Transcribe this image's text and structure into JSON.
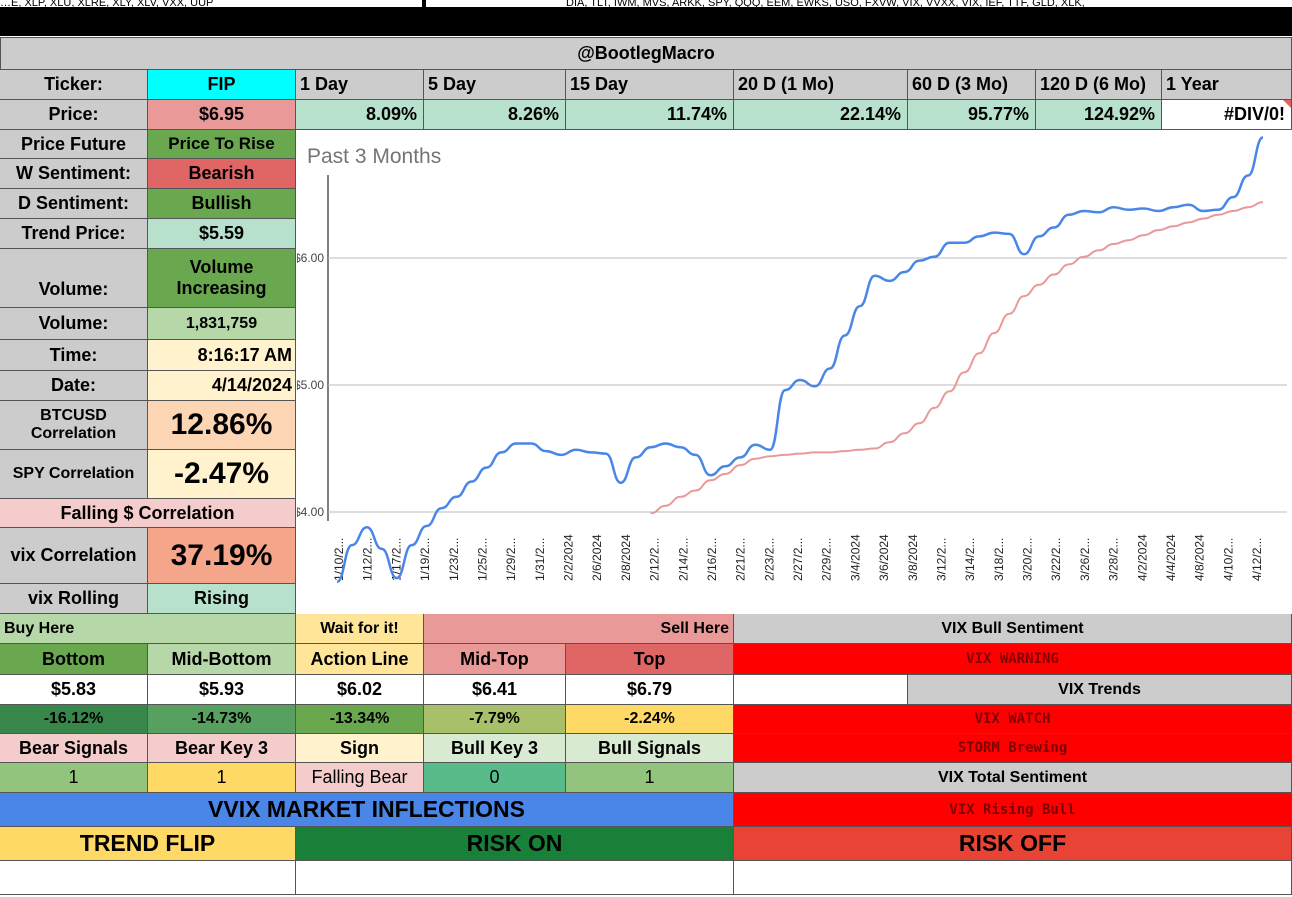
{
  "top_strip": {
    "left_text": "…E, XLP, XLU, XLRE, XLY, XLV, VXX, UUP",
    "right_text": "DIA, TLT, IWM, MVS, ARKK, SPY, QQQ, EEM, EWKS, USO, FXVW, VIX, VVXX, VIX, IEF, TTF, GLD, XLK,"
  },
  "header": {
    "title": "@BootlegMacro"
  },
  "ticker": {
    "label": "Ticker:",
    "value": "FIP"
  },
  "periods": {
    "labels": [
      "1 Day",
      "5 Day",
      "15 Day",
      "20 D (1 Mo)",
      "60 D (3 Mo)",
      "120 D (6 Mo)",
      "1 Year"
    ],
    "values": [
      "8.09%",
      "8.26%",
      "11.74%",
      "22.14%",
      "95.77%",
      "124.92%",
      "#DIV/0!"
    ]
  },
  "price": {
    "label": "Price:",
    "value": "$6.95"
  },
  "stats": {
    "price_future": {
      "label": "Price Future",
      "value": "Price To Rise"
    },
    "w_sentiment": {
      "label": "W Sentiment:",
      "value": "Bearish"
    },
    "d_sentiment": {
      "label": "D Sentiment:",
      "value": "Bullish"
    },
    "trend_price": {
      "label": "Trend Price:",
      "value": "$5.59"
    },
    "volume_trend": {
      "label": "Volume:",
      "value": "Volume Increasing"
    },
    "volume": {
      "label": "Volume:",
      "value": "1,831,759"
    },
    "time": {
      "label": "Time:",
      "value": "8:16:17 AM"
    },
    "date": {
      "label": "Date:",
      "value": "4/14/2024"
    },
    "btc_corr": {
      "label": "BTCUSD Correlation",
      "value": "12.86%"
    },
    "spy_corr": {
      "label": "SPY Correlation",
      "value": "-2.47%"
    },
    "falling_corr": {
      "label": "Falling $ Correlation"
    },
    "vix_corr": {
      "label": "vix Correlation",
      "value": "37.19%"
    },
    "vix_rolling": {
      "label": "vix Rolling",
      "value": "Rising"
    }
  },
  "chart_data": {
    "type": "line",
    "title": "Past 3 Months",
    "y_ticks": [
      "$4.00",
      "$5.00",
      "$6.00"
    ],
    "y_range": [
      3.41,
      7.0
    ],
    "x_labels": [
      "1/10/2...",
      "1/12/2...",
      "1/17/2...",
      "1/19/2...",
      "1/23/2...",
      "1/25/2...",
      "1/29/2...",
      "1/31/2...",
      "2/2/2024",
      "2/6/2024",
      "2/8/2024",
      "2/12/2...",
      "2/14/2...",
      "2/16/2...",
      "2/21/2...",
      "2/23/2...",
      "2/27/2...",
      "2/29/2...",
      "3/4/2024",
      "3/6/2024",
      "3/8/2024",
      "3/12/2...",
      "3/14/2...",
      "3/18/2...",
      "3/20/2...",
      "3/22/2...",
      "3/26/2...",
      "3/28/2...",
      "4/2/2024",
      "4/4/2024",
      "4/8/2024",
      "4/10/2...",
      "4/12/2..."
    ],
    "series": [
      {
        "name": "Price",
        "color": "#4a86e8",
        "values": [
          3.45,
          3.74,
          3.88,
          3.71,
          3.48,
          3.74,
          3.89,
          4.03,
          4.12,
          4.24,
          4.35,
          4.47,
          4.54,
          4.54,
          4.48,
          4.45,
          4.49,
          4.47,
          4.46,
          4.23,
          4.43,
          4.51,
          4.54,
          4.51,
          4.45,
          4.29,
          4.36,
          4.43,
          4.53,
          4.49,
          4.96,
          5.04,
          4.99,
          5.13,
          5.39,
          5.62,
          5.86,
          5.82,
          5.89,
          5.98,
          6.01,
          6.12,
          6.12,
          6.17,
          6.2,
          6.19,
          6.03,
          6.17,
          6.24,
          6.34,
          6.37,
          6.36,
          6.4,
          6.38,
          6.39,
          6.37,
          6.4,
          6.42,
          6.37,
          6.38,
          6.48,
          6.65,
          6.95
        ]
      },
      {
        "name": "Trend",
        "color": "#ea9999",
        "values": [
          null,
          null,
          null,
          null,
          null,
          null,
          null,
          null,
          null,
          null,
          null,
          null,
          null,
          null,
          null,
          null,
          null,
          null,
          null,
          null,
          null,
          3.99,
          4.05,
          4.12,
          4.17,
          4.25,
          4.3,
          4.37,
          4.42,
          4.44,
          4.45,
          4.46,
          4.47,
          4.47,
          4.48,
          4.49,
          4.5,
          4.55,
          4.62,
          4.7,
          4.82,
          4.95,
          5.1,
          5.25,
          5.41,
          5.56,
          5.7,
          5.79,
          5.87,
          5.95,
          6.01,
          6.06,
          6.11,
          6.14,
          6.18,
          6.22,
          6.25,
          6.28,
          6.31,
          6.34,
          6.37,
          6.4,
          6.44
        ]
      }
    ]
  },
  "signals": {
    "buy_here": "Buy Here",
    "wait": "Wait for it!",
    "sell_here": "Sell Here",
    "levels": [
      {
        "name": "Bottom",
        "price": "$5.83",
        "pct": "-16.12%"
      },
      {
        "name": "Mid-Bottom",
        "price": "$5.93",
        "pct": "-14.73%"
      },
      {
        "name": "Action Line",
        "price": "$6.02",
        "pct": "-13.34%"
      },
      {
        "name": "Mid-Top",
        "price": "$6.41",
        "pct": "-7.79%"
      },
      {
        "name": "Top",
        "price": "$6.79",
        "pct": "-2.24%"
      }
    ],
    "signal_headers": [
      "Bear Signals",
      "Bear Key 3",
      "Sign",
      "Bull Key 3",
      "Bull Signals"
    ],
    "signal_values": [
      "1",
      "1",
      "Falling Bear",
      "0",
      "1"
    ]
  },
  "vix": {
    "bull_sentiment_title": "VIX Bull Sentiment",
    "warning": "VIX WARNING",
    "trends_title": "VIX Trends",
    "watch": "VIX WATCH",
    "storm": "STORM Brewing",
    "total_title": "VIX Total Sentiment",
    "rising_bull": "VIX Rising Bull"
  },
  "inflections": {
    "title": "VVIX MARKET INFLECTIONS",
    "trend_flip": "TREND FLIP",
    "risk_on": "RISK ON",
    "risk_off": "RISK OFF"
  },
  "colors": {
    "gray": "#cccccc",
    "cyan": "#00ffff",
    "green_dark": "#6aa84f",
    "green_light": "#b7e1cd",
    "red_light": "#ea9999",
    "red_mid": "#e06666",
    "red_bright": "#ff0000",
    "yellow_light": "#fff2cc",
    "blue_banner": "#4a86e8",
    "risk_green": "#188038",
    "risk_red": "#e84334",
    "trend_yellow": "#ffd966"
  }
}
